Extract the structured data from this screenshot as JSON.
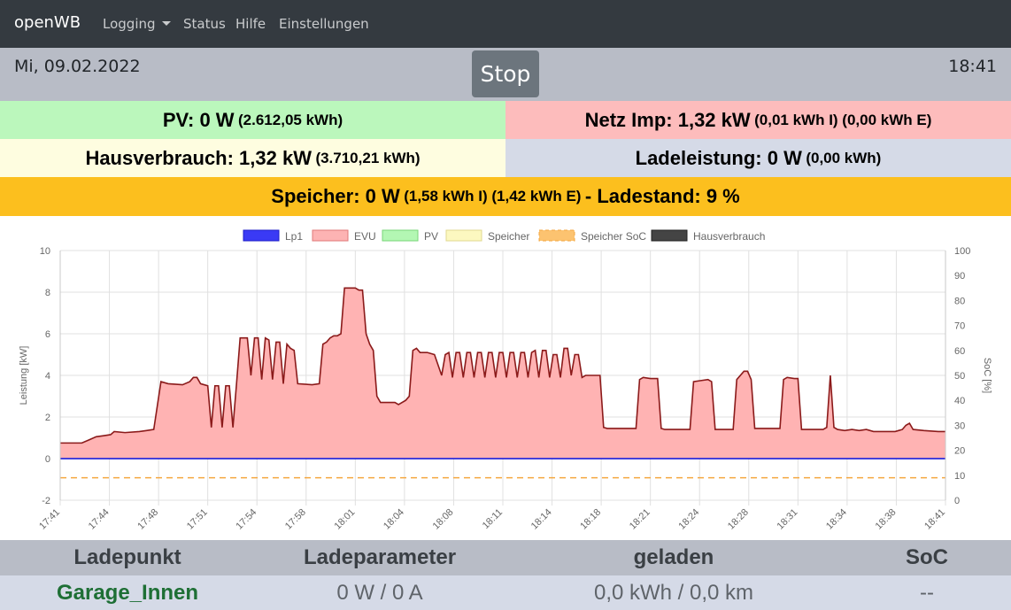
{
  "nav": {
    "brand": "openWB",
    "items": [
      {
        "label": "Logging",
        "dropdown": true
      },
      {
        "label": "Status"
      },
      {
        "label": "Hilfe"
      },
      {
        "label": "Einstellungen"
      }
    ]
  },
  "header": {
    "date": "Mi, 09.02.2022",
    "stop_label": "Stop",
    "time": "18:41"
  },
  "tiles": {
    "pv": {
      "main": "PV: 0 W",
      "sub": "(2.612,05 kWh)",
      "color": "#bbf7bc"
    },
    "netz": {
      "main": "Netz Imp: 1,32 kW",
      "sub": "(0,01 kWh I) (0,00 kWh E)",
      "color": "#fdbcbc"
    },
    "haus": {
      "main": "Hausverbrauch: 1,32 kW",
      "sub": "(3.710,21 kWh)",
      "color": "#fefde0"
    },
    "lade": {
      "main": "Ladeleistung: 0 W",
      "sub": "(0,00 kWh)",
      "color": "#d5dae7"
    },
    "speicher": {
      "main1": "Speicher: 0 W",
      "sub": "(1,58 kWh I) (1,42 kWh E)",
      "main2": "- Ladestand: 9 %",
      "color": "#fcbf1e"
    }
  },
  "chart_data": {
    "type": "area",
    "xlabel": "",
    "ylabel": "Leistung [kW]",
    "y2label": "SoC [%]",
    "ylim": [
      -2,
      10
    ],
    "y2lim": [
      0,
      100
    ],
    "yticks": [
      "10",
      "8",
      "6",
      "4",
      "2",
      "0",
      "-2"
    ],
    "y2ticks": [
      "100",
      "90",
      "80",
      "70",
      "60",
      "50",
      "40",
      "30",
      "20",
      "10",
      "0"
    ],
    "xticks": [
      "17:41",
      "17:44",
      "17:48",
      "17:51",
      "17:54",
      "17:58",
      "18:01",
      "18:04",
      "18:08",
      "18:11",
      "18:14",
      "18:18",
      "18:21",
      "18:24",
      "18:28",
      "18:31",
      "18:34",
      "18:38",
      "18:41"
    ],
    "grid": true,
    "legend_position": "top",
    "legend": [
      {
        "name": "Lp1",
        "color": "#3a3af5",
        "stroke": "#1f1fc8"
      },
      {
        "name": "EVU",
        "color": "#fdb3b3",
        "stroke": "#e07a7a"
      },
      {
        "name": "PV",
        "color": "#b3f7b3",
        "stroke": "#7ad67a"
      },
      {
        "name": "Speicher",
        "color": "#fcf8c0",
        "stroke": "#e0d890"
      },
      {
        "name": "Speicher SoC",
        "color": "#fcc370",
        "stroke": "#f5a740",
        "dashed": true
      },
      {
        "name": "Hausverbrauch",
        "color": "#444444",
        "stroke": "#222222"
      }
    ],
    "series": [
      {
        "name": "EVU",
        "fill": "#ffb3b3",
        "stroke": "#8b1a1a",
        "points": [
          [
            0,
            0.75
          ],
          [
            0.03,
            0.75
          ],
          [
            0.04,
            0.9
          ],
          [
            0.05,
            1.05
          ],
          [
            0.06,
            1.1
          ],
          [
            0.07,
            1.15
          ],
          [
            0.075,
            1.3
          ],
          [
            0.09,
            1.25
          ],
          [
            0.11,
            1.3
          ],
          [
            0.12,
            1.35
          ],
          [
            0.13,
            1.4
          ],
          [
            0.14,
            3.7
          ],
          [
            0.15,
            3.6
          ],
          [
            0.17,
            3.55
          ],
          [
            0.18,
            3.7
          ],
          [
            0.185,
            3.9
          ],
          [
            0.19,
            3.9
          ],
          [
            0.195,
            3.6
          ],
          [
            0.2,
            3.55
          ],
          [
            0.205,
            3.5
          ],
          [
            0.21,
            1.5
          ],
          [
            0.215,
            3.5
          ],
          [
            0.22,
            3.5
          ],
          [
            0.225,
            1.5
          ],
          [
            0.23,
            3.5
          ],
          [
            0.235,
            3.5
          ],
          [
            0.24,
            1.5
          ],
          [
            0.245,
            3.6
          ],
          [
            0.25,
            5.8
          ],
          [
            0.26,
            5.8
          ],
          [
            0.265,
            4.0
          ],
          [
            0.27,
            5.8
          ],
          [
            0.275,
            5.8
          ],
          [
            0.28,
            3.8
          ],
          [
            0.285,
            5.8
          ],
          [
            0.29,
            5.7
          ],
          [
            0.295,
            3.8
          ],
          [
            0.3,
            5.6
          ],
          [
            0.305,
            5.6
          ],
          [
            0.31,
            3.6
          ],
          [
            0.315,
            5.5
          ],
          [
            0.32,
            5.3
          ],
          [
            0.325,
            5.2
          ],
          [
            0.33,
            3.6
          ],
          [
            0.35,
            3.55
          ],
          [
            0.36,
            3.6
          ],
          [
            0.365,
            5.5
          ],
          [
            0.37,
            5.6
          ],
          [
            0.375,
            5.8
          ],
          [
            0.38,
            5.9
          ],
          [
            0.385,
            5.9
          ],
          [
            0.39,
            6.0
          ],
          [
            0.395,
            8.2
          ],
          [
            0.41,
            8.2
          ],
          [
            0.415,
            8.1
          ],
          [
            0.42,
            8.1
          ],
          [
            0.425,
            6.0
          ],
          [
            0.43,
            5.5
          ],
          [
            0.435,
            5.2
          ],
          [
            0.44,
            3.0
          ],
          [
            0.445,
            2.7
          ],
          [
            0.465,
            2.7
          ],
          [
            0.47,
            2.6
          ],
          [
            0.48,
            2.8
          ],
          [
            0.485,
            3.0
          ],
          [
            0.49,
            5.2
          ],
          [
            0.495,
            5.3
          ],
          [
            0.5,
            5.1
          ],
          [
            0.51,
            5.1
          ],
          [
            0.52,
            5.0
          ],
          [
            0.53,
            4.0
          ],
          [
            0.535,
            5.0
          ],
          [
            0.54,
            5.1
          ],
          [
            0.545,
            3.9
          ],
          [
            0.55,
            5.1
          ],
          [
            0.555,
            5.1
          ],
          [
            0.56,
            3.9
          ],
          [
            0.565,
            5.1
          ],
          [
            0.57,
            5.1
          ],
          [
            0.575,
            3.9
          ],
          [
            0.58,
            5.1
          ],
          [
            0.585,
            5.1
          ],
          [
            0.59,
            3.9
          ],
          [
            0.595,
            5.1
          ],
          [
            0.6,
            5.1
          ],
          [
            0.605,
            3.9
          ],
          [
            0.61,
            5.1
          ],
          [
            0.615,
            5.1
          ],
          [
            0.62,
            3.9
          ],
          [
            0.625,
            5.1
          ],
          [
            0.63,
            5.1
          ],
          [
            0.635,
            3.9
          ],
          [
            0.64,
            5.1
          ],
          [
            0.645,
            5.1
          ],
          [
            0.65,
            3.9
          ],
          [
            0.655,
            5.1
          ],
          [
            0.66,
            5.2
          ],
          [
            0.665,
            3.9
          ],
          [
            0.67,
            5.2
          ],
          [
            0.675,
            5.2
          ],
          [
            0.68,
            3.9
          ],
          [
            0.685,
            5.0
          ],
          [
            0.69,
            5.0
          ],
          [
            0.695,
            3.9
          ],
          [
            0.7,
            5.3
          ],
          [
            0.705,
            5.3
          ],
          [
            0.71,
            4.0
          ],
          [
            0.715,
            5.0
          ],
          [
            0.72,
            5.0
          ],
          [
            0.725,
            3.9
          ],
          [
            0.73,
            4.0
          ],
          [
            0.75,
            4.0
          ],
          [
            0.755,
            1.5
          ],
          [
            0.76,
            1.45
          ],
          [
            0.79,
            1.45
          ],
          [
            0.8,
            1.45
          ],
          [
            0.805,
            3.8
          ],
          [
            0.81,
            3.9
          ],
          [
            0.82,
            3.85
          ],
          [
            0.83,
            3.85
          ],
          [
            0.835,
            1.45
          ],
          [
            0.84,
            1.4
          ],
          [
            0.87,
            1.4
          ],
          [
            0.875,
            1.4
          ],
          [
            0.88,
            3.7
          ],
          [
            0.89,
            3.75
          ],
          [
            0.9,
            3.8
          ],
          [
            0.905,
            3.7
          ],
          [
            0.91,
            1.4
          ],
          [
            0.92,
            1.4
          ],
          [
            0.935,
            1.4
          ],
          [
            0.94,
            3.8
          ],
          [
            0.95,
            4.2
          ],
          [
            0.955,
            4.2
          ],
          [
            0.96,
            3.8
          ],
          [
            0.965,
            1.45
          ],
          [
            0.97,
            1.45
          ],
          [
            0.99,
            1.45
          ],
          [
            1.0,
            1.45
          ],
          [
            1.005,
            3.8
          ],
          [
            1.01,
            3.9
          ],
          [
            1.02,
            3.85
          ],
          [
            1.025,
            3.85
          ],
          [
            1.03,
            1.4
          ],
          [
            1.04,
            1.4
          ],
          [
            1.06,
            1.4
          ],
          [
            1.065,
            1.5
          ],
          [
            1.07,
            4.0
          ],
          [
            1.075,
            1.5
          ],
          [
            1.08,
            1.4
          ],
          [
            1.09,
            1.35
          ],
          [
            1.1,
            1.4
          ],
          [
            1.11,
            1.35
          ],
          [
            1.12,
            1.4
          ],
          [
            1.13,
            1.3
          ],
          [
            1.14,
            1.3
          ],
          [
            1.16,
            1.3
          ],
          [
            1.17,
            1.4
          ],
          [
            1.175,
            1.6
          ],
          [
            1.18,
            1.7
          ],
          [
            1.185,
            1.4
          ],
          [
            1.2,
            1.35
          ],
          [
            1.22,
            1.3
          ],
          [
            1.23,
            1.3
          ]
        ]
      },
      {
        "name": "Lp1",
        "stroke": "#2b2bd8",
        "value": 0
      },
      {
        "name": "Speicher SoC",
        "stroke": "#f5a740",
        "dashed": true,
        "value_percent": 9
      }
    ]
  },
  "table": {
    "headers": [
      "Ladepunkt",
      "Ladeparameter",
      "geladen",
      "SoC"
    ],
    "rows": [
      {
        "ladepunkt": "Garage_Innen",
        "param": "0 W / 0 A",
        "geladen": "0,0 kWh / 0,0 km",
        "soc": "--"
      }
    ]
  }
}
